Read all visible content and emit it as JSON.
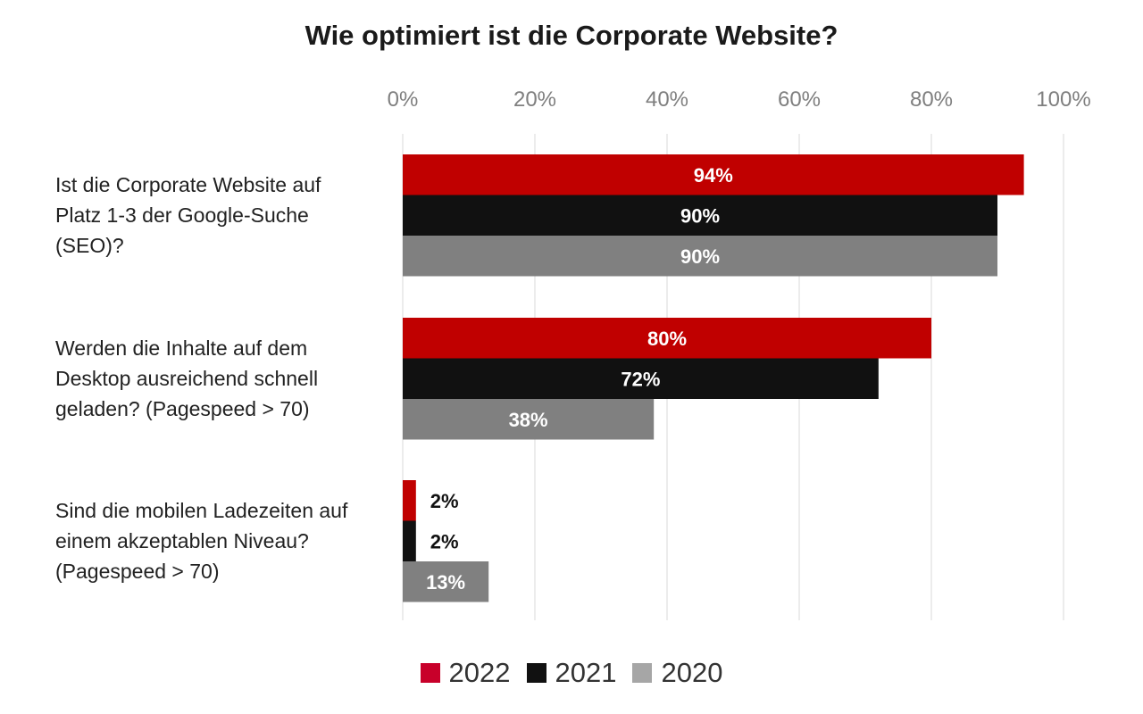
{
  "chart_data": {
    "type": "bar",
    "orientation": "horizontal",
    "title": "Wie optimiert ist die Corporate Website?",
    "categories": [
      [
        "Ist die Corporate Website auf",
        "Platz 1-3 der Google-Suche",
        "(SEO)?"
      ],
      [
        "Werden die Inhalte auf dem",
        "Desktop ausreichend schnell",
        "geladen? (Pagespeed > 70)"
      ],
      [
        "Sind die mobilen Ladezeiten auf",
        "einem akzeptablen Niveau?",
        "(Pagespeed > 70)"
      ]
    ],
    "series": [
      {
        "name": "2022",
        "color": "#c00000",
        "values": [
          94,
          80,
          2
        ],
        "labels": [
          "94%",
          "80%",
          "2%"
        ]
      },
      {
        "name": "2021",
        "color": "#111111",
        "values": [
          90,
          72,
          2
        ],
        "labels": [
          "90%",
          "72%",
          "2%"
        ]
      },
      {
        "name": "2020",
        "color": "#808080",
        "values": [
          90,
          38,
          13
        ],
        "labels": [
          "90%",
          "38%",
          "13%"
        ]
      }
    ],
    "xlim": [
      0,
      100
    ],
    "xticks": [
      0,
      20,
      40,
      60,
      80,
      100
    ],
    "xtick_labels": [
      "0%",
      "20%",
      "40%",
      "60%",
      "80%",
      "100%"
    ],
    "grid": true,
    "legend_position": "bottom-center",
    "legend_colors": [
      "#c8002a",
      "#111111",
      "#a6a6a6"
    ]
  }
}
